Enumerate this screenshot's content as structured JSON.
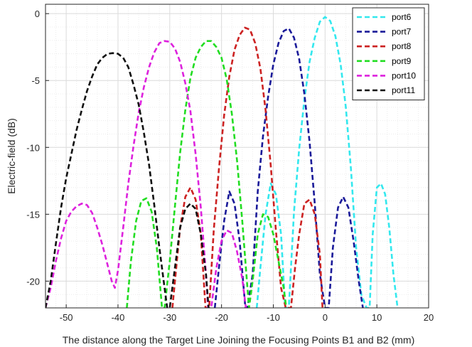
{
  "chart_data": {
    "type": "line",
    "title": "",
    "xlabel": "The distance along the Target Line Joining the Focusing Points B1 and B2 (mm)",
    "ylabel": "Electric-field (dB)",
    "xlim": [
      -54,
      20
    ],
    "ylim": [
      -22,
      0.7
    ],
    "xticks": [
      -50,
      -40,
      -30,
      -20,
      -10,
      0,
      10,
      20
    ],
    "yticks": [
      0,
      -5,
      -10,
      -15,
      -20
    ],
    "grid": true,
    "minor_grid": true,
    "legend_position": "top-right",
    "series": [
      {
        "name": "port6",
        "color": "#33e8ee",
        "x": [
          -13.2,
          -12.5,
          -11.5,
          -10.5,
          -9.5,
          -8.5,
          -7.7,
          -7,
          -6,
          -5,
          -4,
          -3,
          -2,
          -1,
          0,
          1,
          2,
          3,
          4,
          5,
          6,
          7,
          8,
          8.6,
          9.2,
          10,
          10.8,
          11.6,
          12.4,
          13.2,
          14
        ],
        "y": [
          -22,
          -19,
          -15,
          -12.7,
          -13.5,
          -16.5,
          -22,
          -22,
          -14.8,
          -10.1,
          -6.4,
          -3.6,
          -1.8,
          -0.6,
          -0.25,
          -0.55,
          -1.7,
          -3.8,
          -7,
          -11.6,
          -17.5,
          -21,
          -22,
          -22,
          -16.5,
          -13,
          -12.7,
          -13.5,
          -16,
          -19.5,
          -22
        ]
      },
      {
        "name": "port7",
        "color": "#1a1a99",
        "x": [
          -21.3,
          -20.5,
          -19.5,
          -18.5,
          -17.5,
          -16.5,
          -15.4,
          -15,
          -14,
          -13,
          -12,
          -11,
          -10,
          -9,
          -8,
          -7,
          -6,
          -5,
          -4,
          -3,
          -2,
          -1,
          0,
          0.7,
          1.5,
          2.5,
          3.5,
          4.5,
          5.5,
          6.5,
          7.3
        ],
        "y": [
          -22,
          -19,
          -15.5,
          -13.3,
          -14.2,
          -17,
          -22,
          -22,
          -19.5,
          -13.3,
          -9.2,
          -6.2,
          -3.8,
          -2.2,
          -1.3,
          -1.1,
          -1.8,
          -3.4,
          -6,
          -9.6,
          -14.2,
          -19.5,
          -22,
          -22,
          -17.5,
          -14.5,
          -13.7,
          -14.5,
          -17,
          -20,
          -22
        ]
      },
      {
        "name": "port8",
        "color": "#cc2222",
        "x": [
          -29.5,
          -29,
          -28,
          -27,
          -26,
          -25,
          -24,
          -23.1,
          -22.4,
          -21.5,
          -20.5,
          -19.5,
          -18.5,
          -17.5,
          -16.5,
          -15.5,
          -14.5,
          -13.5,
          -12.5,
          -11.5,
          -10.5,
          -9.5,
          -8.5,
          -7.6,
          -6.6,
          -5.8,
          -5,
          -4,
          -3,
          -2,
          -1,
          -0.5
        ],
        "y": [
          -22,
          -20,
          -16,
          -13.7,
          -13,
          -13.9,
          -16.5,
          -22,
          -22,
          -16.2,
          -11.6,
          -7.6,
          -4.7,
          -2.7,
          -1.6,
          -1.05,
          -1.2,
          -2.2,
          -4.1,
          -7.2,
          -11.3,
          -16.2,
          -20.5,
          -22,
          -22,
          -19,
          -16.5,
          -14.2,
          -13.9,
          -15,
          -18,
          -22
        ]
      },
      {
        "name": "port9",
        "color": "#22dd22",
        "x": [
          -38.3,
          -37.5,
          -36.5,
          -35.5,
          -34.5,
          -33.5,
          -32.5,
          -31.5,
          -31,
          -30,
          -29,
          -28,
          -27,
          -26,
          -25,
          -24,
          -23,
          -22,
          -21,
          -20,
          -19,
          -18,
          -17,
          -16,
          -15,
          -14.7,
          -14,
          -13,
          -12,
          -11,
          -10,
          -9,
          -8,
          -7.5
        ],
        "y": [
          -22,
          -18.5,
          -15.5,
          -14,
          -13.8,
          -14.8,
          -17.5,
          -22,
          -22,
          -18.5,
          -14.4,
          -10.4,
          -7.2,
          -4.8,
          -3.3,
          -2.5,
          -2.05,
          -2.05,
          -2.5,
          -3.3,
          -4.9,
          -7.5,
          -11,
          -15.5,
          -20.5,
          -22,
          -20,
          -16.5,
          -15,
          -15.2,
          -16.5,
          -18.5,
          -20.5,
          -22
        ]
      },
      {
        "name": "port10",
        "color": "#dd22dd",
        "x": [
          -54,
          -53,
          -52,
          -51,
          -50,
          -49,
          -48,
          -47,
          -46,
          -45,
          -44,
          -43,
          -42,
          -41.2,
          -40.6,
          -40,
          -39,
          -38,
          -37,
          -36,
          -35,
          -34,
          -33,
          -32,
          -31,
          -30,
          -29,
          -28,
          -27,
          -26,
          -25,
          -24,
          -23,
          -22.6,
          -22,
          -21,
          -20,
          -19,
          -18,
          -17,
          -16,
          -15.3
        ],
        "y": [
          -22,
          -20.5,
          -18.5,
          -16.8,
          -15.5,
          -14.8,
          -14.4,
          -14.2,
          -14.3,
          -14.9,
          -16,
          -17.3,
          -18.8,
          -20,
          -20.5,
          -19.2,
          -16,
          -12.7,
          -9.9,
          -7.4,
          -5.5,
          -4,
          -2.9,
          -2.2,
          -2.05,
          -2.1,
          -2.6,
          -3.6,
          -5.2,
          -7.3,
          -10.5,
          -14.5,
          -19.5,
          -22,
          -22,
          -19,
          -17,
          -16.2,
          -16.4,
          -17.8,
          -19.8,
          -22
        ]
      },
      {
        "name": "port11",
        "color": "#111111",
        "x": [
          -54,
          -53,
          -52,
          -51,
          -50,
          -49,
          -48,
          -47,
          -46,
          -45,
          -44,
          -43,
          -42,
          -41,
          -40,
          -39,
          -38,
          -37,
          -36,
          -35,
          -34,
          -33,
          -32,
          -31,
          -30.5,
          -30,
          -29,
          -28,
          -27,
          -26,
          -25,
          -24,
          -23,
          -22.5
        ],
        "y": [
          -22,
          -20,
          -17.2,
          -14.5,
          -12.3,
          -10.5,
          -8.7,
          -7.2,
          -5.8,
          -4.7,
          -3.8,
          -3.3,
          -3,
          -2.95,
          -3,
          -3.3,
          -4,
          -5.3,
          -6.8,
          -8.9,
          -11.3,
          -14.3,
          -17.5,
          -20.5,
          -22,
          -22,
          -19,
          -16,
          -14.6,
          -14.2,
          -14.6,
          -16.5,
          -19.5,
          -22
        ]
      }
    ]
  }
}
